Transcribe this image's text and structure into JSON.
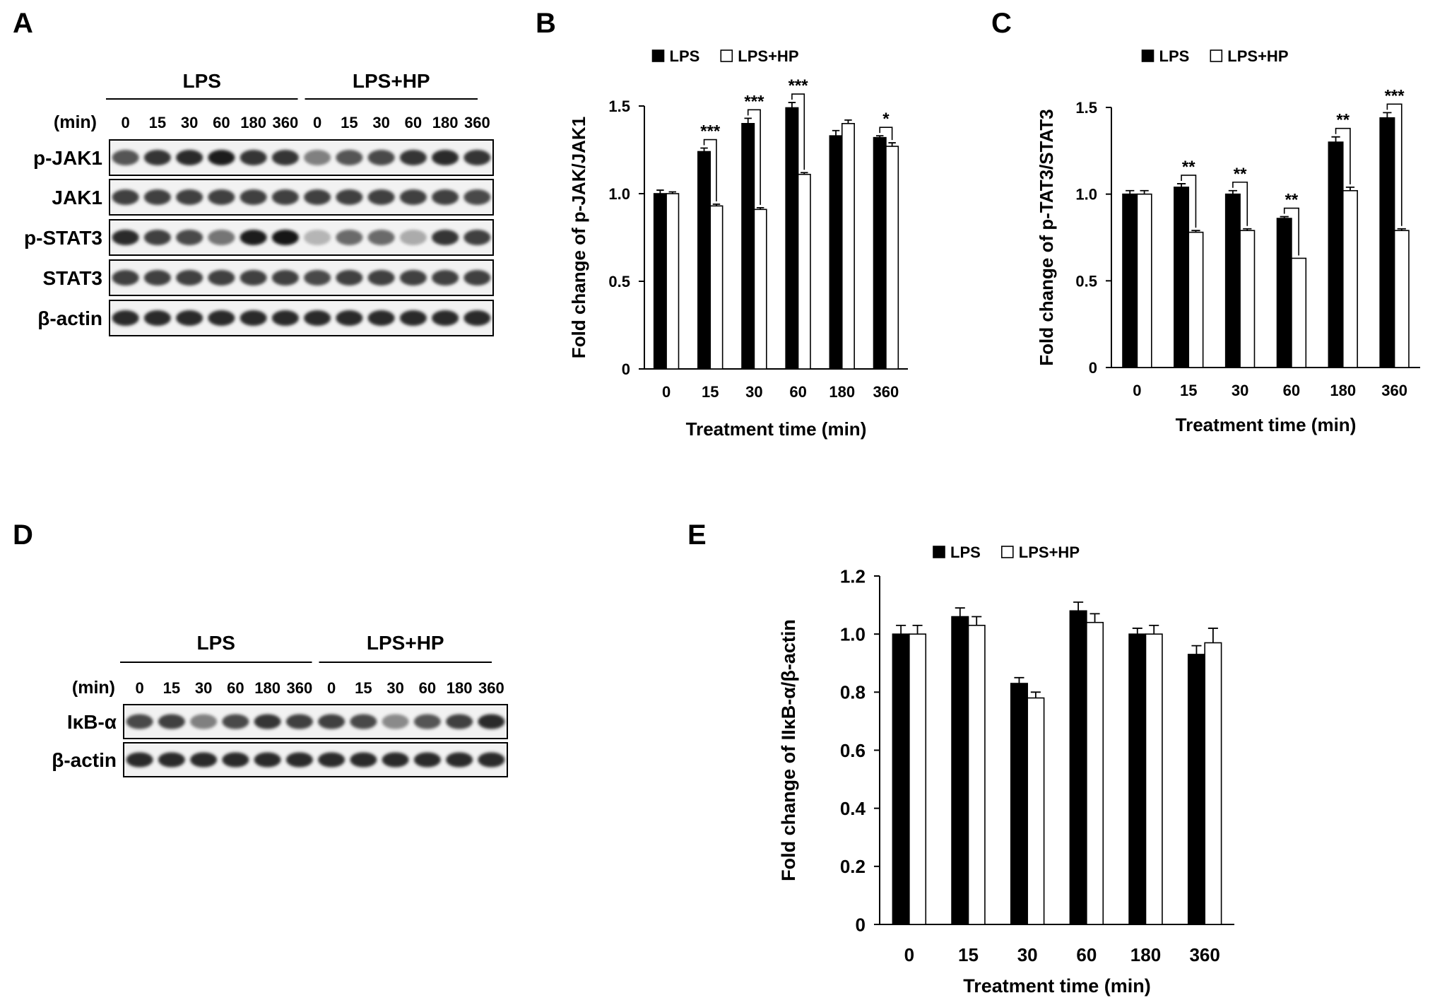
{
  "panels": {
    "A": "A",
    "B": "B",
    "C": "C",
    "D": "D",
    "E": "E"
  },
  "blotA": {
    "groups": [
      "LPS",
      "LPS+HP"
    ],
    "min_label": "(min)",
    "lanes": [
      "0",
      "15",
      "30",
      "60",
      "180",
      "360",
      "0",
      "15",
      "30",
      "60",
      "180",
      "360"
    ],
    "rows": [
      {
        "label": "p-JAK1",
        "bands": [
          0.7,
          0.85,
          0.9,
          0.95,
          0.85,
          0.85,
          0.5,
          0.7,
          0.75,
          0.85,
          0.9,
          0.85
        ]
      },
      {
        "label": "JAK1",
        "bands": [
          0.8,
          0.8,
          0.8,
          0.8,
          0.8,
          0.8,
          0.8,
          0.8,
          0.8,
          0.8,
          0.8,
          0.75
        ]
      },
      {
        "label": "p-STAT3",
        "bands": [
          0.9,
          0.8,
          0.75,
          0.55,
          0.95,
          1.0,
          0.25,
          0.6,
          0.6,
          0.3,
          0.85,
          0.8
        ]
      },
      {
        "label": "STAT3",
        "bands": [
          0.8,
          0.8,
          0.8,
          0.8,
          0.8,
          0.8,
          0.75,
          0.8,
          0.8,
          0.8,
          0.8,
          0.8
        ]
      },
      {
        "label": "β-actin",
        "bands": [
          0.9,
          0.9,
          0.9,
          0.9,
          0.9,
          0.9,
          0.9,
          0.9,
          0.9,
          0.9,
          0.9,
          0.9
        ]
      }
    ]
  },
  "blotD": {
    "groups": [
      "LPS",
      "LPS+HP"
    ],
    "min_label": "(min)",
    "lanes": [
      "0",
      "15",
      "30",
      "60",
      "180",
      "360",
      "0",
      "15",
      "30",
      "60",
      "180",
      "360"
    ],
    "rows": [
      {
        "label": "IκB-α",
        "bands": [
          0.75,
          0.8,
          0.5,
          0.75,
          0.85,
          0.8,
          0.8,
          0.75,
          0.45,
          0.7,
          0.8,
          0.9
        ]
      },
      {
        "label": "β-actin",
        "bands": [
          0.9,
          0.9,
          0.9,
          0.9,
          0.9,
          0.9,
          0.9,
          0.9,
          0.9,
          0.9,
          0.9,
          0.9
        ]
      }
    ]
  },
  "chart_data": [
    {
      "panel": "B",
      "type": "bar",
      "categories": [
        "0",
        "15",
        "30",
        "60",
        "180",
        "360"
      ],
      "series": [
        {
          "name": "LPS",
          "color": "#000000",
          "values": [
            1.0,
            1.24,
            1.4,
            1.49,
            1.33,
            1.32
          ],
          "errors": [
            0.02,
            0.02,
            0.03,
            0.03,
            0.03,
            0.01
          ]
        },
        {
          "name": "LPS+HP",
          "color": "#ffffff",
          "values": [
            1.0,
            0.93,
            0.91,
            1.11,
            1.4,
            1.27
          ],
          "errors": [
            0.01,
            0.01,
            0.01,
            0.01,
            0.02,
            0.02
          ]
        }
      ],
      "significance": [
        "",
        "***",
        "***",
        "***",
        "",
        "*"
      ],
      "xlabel": "Treatment time (min)",
      "ylabel": "Fold change of p-JAK/JAK1",
      "ylim": [
        0,
        1.5
      ],
      "yticks": [
        "0",
        "0.5",
        "1.0",
        "1.5"
      ],
      "legend": "top"
    },
    {
      "panel": "C",
      "type": "bar",
      "categories": [
        "0",
        "15",
        "30",
        "60",
        "180",
        "360"
      ],
      "series": [
        {
          "name": "LPS",
          "color": "#000000",
          "values": [
            1.0,
            1.04,
            1.0,
            0.86,
            1.3,
            1.44
          ],
          "errors": [
            0.02,
            0.02,
            0.02,
            0.01,
            0.03,
            0.03
          ]
        },
        {
          "name": "LPS+HP",
          "color": "#ffffff",
          "values": [
            1.0,
            0.78,
            0.79,
            0.63,
            1.02,
            0.79
          ],
          "errors": [
            0.02,
            0.01,
            0.01,
            0.0,
            0.02,
            0.01
          ]
        }
      ],
      "significance": [
        "",
        "**",
        "**",
        "**",
        "**",
        "***"
      ],
      "xlabel": "Treatment time (min)",
      "ylabel": "Fold change of p-TAT3/STAT3",
      "ylim": [
        0,
        1.5
      ],
      "yticks": [
        "0",
        "0.5",
        "1.0",
        "1.5"
      ],
      "legend": "top"
    },
    {
      "panel": "E",
      "type": "bar",
      "categories": [
        "0",
        "15",
        "30",
        "60",
        "180",
        "360"
      ],
      "series": [
        {
          "name": "LPS",
          "color": "#000000",
          "values": [
            1.0,
            1.06,
            0.83,
            1.08,
            1.0,
            0.93
          ],
          "errors": [
            0.03,
            0.03,
            0.02,
            0.03,
            0.02,
            0.03
          ]
        },
        {
          "name": "LPS+HP",
          "color": "#ffffff",
          "values": [
            1.0,
            1.03,
            0.78,
            1.04,
            1.0,
            0.97
          ],
          "errors": [
            0.03,
            0.03,
            0.02,
            0.03,
            0.03,
            0.05
          ]
        }
      ],
      "significance": [
        "",
        "",
        "",
        "",
        "",
        ""
      ],
      "xlabel": "Treatment time (min)",
      "ylabel": "Fold change of IIκB-α/β-actin",
      "ylim": [
        0,
        1.2
      ],
      "yticks": [
        "0",
        "0.2",
        "0.4",
        "0.6",
        "0.8",
        "1.0",
        "1.2"
      ],
      "legend": "top"
    }
  ]
}
